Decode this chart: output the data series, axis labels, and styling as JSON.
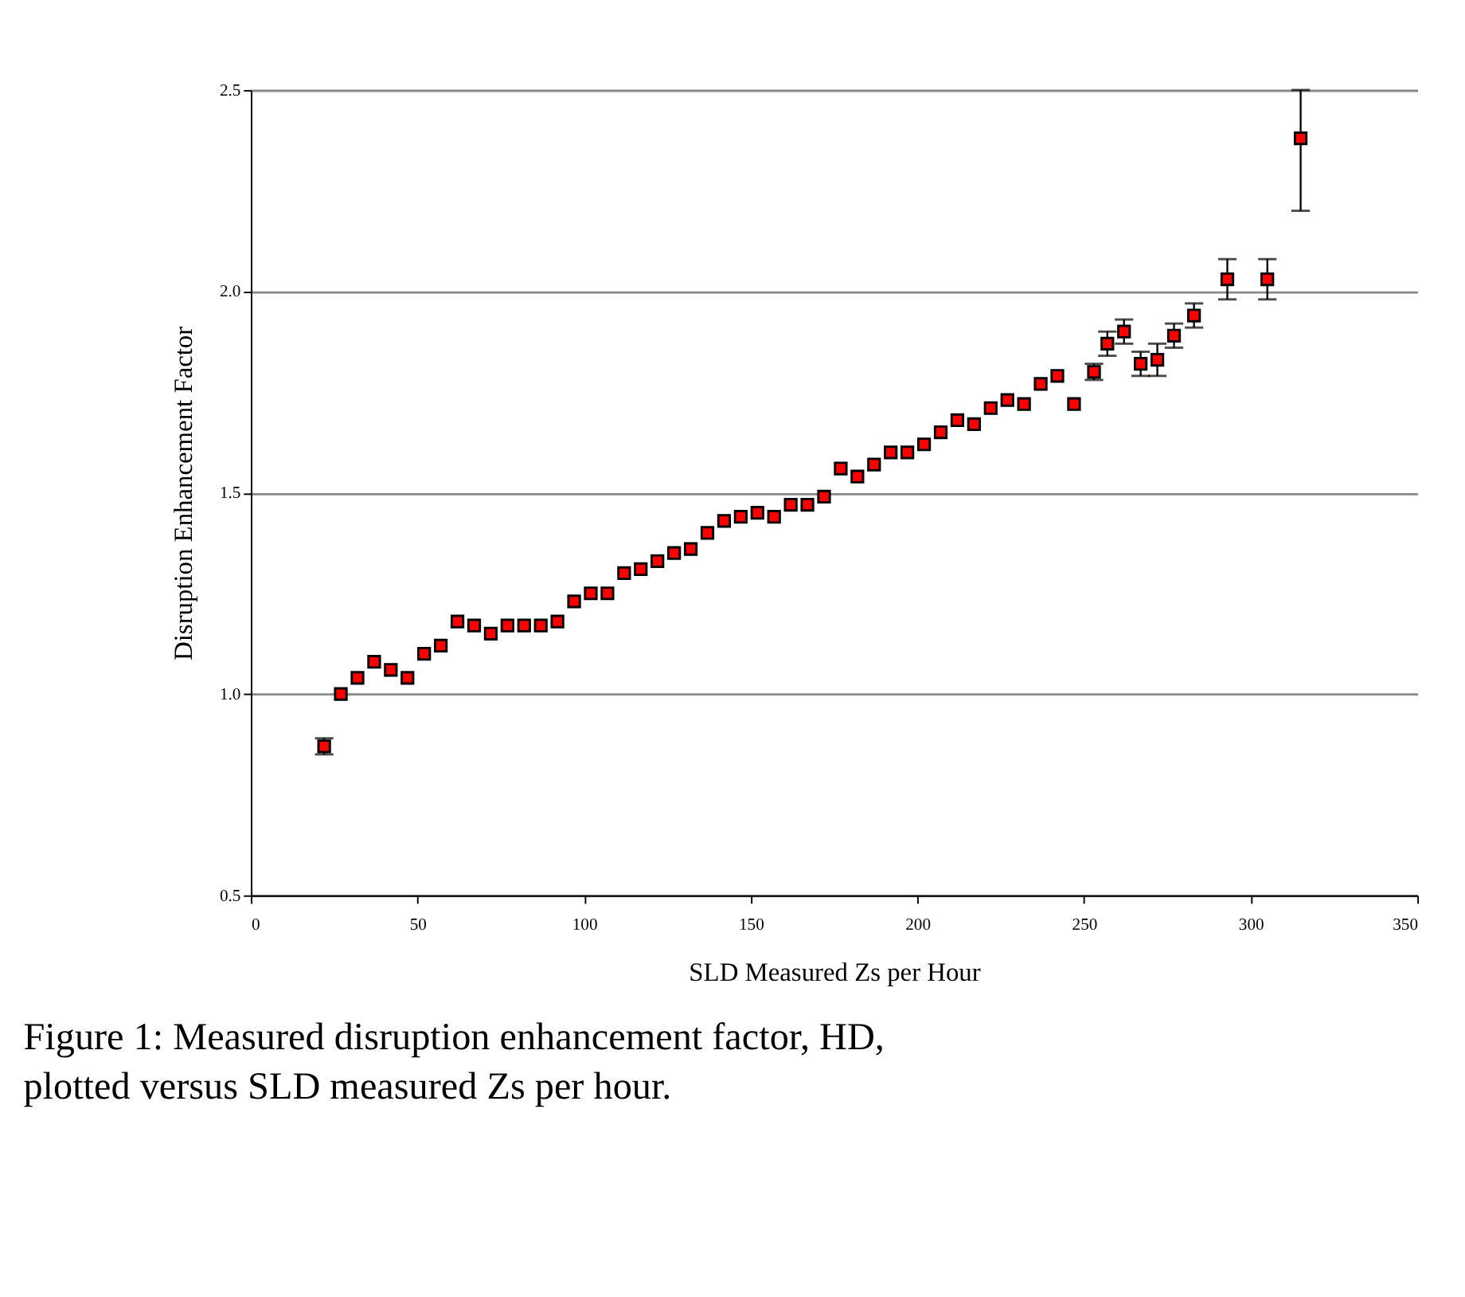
{
  "chart_data": {
    "type": "scatter",
    "xlabel": "SLD Measured Zs per Hour",
    "ylabel": "Disruption Enhancement Factor",
    "x": [
      22,
      27,
      32,
      37,
      42,
      47,
      52,
      57,
      62,
      67,
      72,
      77,
      82,
      87,
      92,
      97,
      102,
      107,
      112,
      117,
      122,
      127,
      132,
      137,
      142,
      147,
      152,
      157,
      162,
      167,
      172,
      177,
      182,
      187,
      192,
      197,
      202,
      207,
      212,
      217,
      222,
      227,
      232,
      237,
      242,
      247,
      253,
      257,
      262,
      267,
      272,
      277,
      283,
      293,
      305,
      315
    ],
    "series": [
      {
        "color": "#ff0000",
        "values": [
          0.87,
          1.0,
          1.04,
          1.08,
          1.06,
          1.04,
          1.1,
          1.12,
          1.18,
          1.17,
          1.15,
          1.17,
          1.17,
          1.17,
          1.18,
          1.23,
          1.25,
          1.25,
          1.3,
          1.31,
          1.33,
          1.35,
          1.36,
          1.4,
          1.43,
          1.44,
          1.45,
          1.44,
          1.47,
          1.47,
          1.49,
          1.56,
          1.54,
          1.57,
          1.6,
          1.6,
          1.62,
          1.65,
          1.68,
          1.67,
          1.71,
          1.73,
          1.72,
          1.77,
          1.79,
          1.72,
          1.8,
          1.87,
          1.9,
          1.82,
          1.83,
          1.89,
          1.94,
          2.03,
          2.03,
          2.38
        ],
        "errors": [
          0.02,
          null,
          null,
          null,
          null,
          null,
          null,
          null,
          null,
          null,
          null,
          null,
          null,
          null,
          null,
          null,
          null,
          null,
          null,
          null,
          null,
          null,
          null,
          null,
          null,
          null,
          null,
          null,
          null,
          null,
          null,
          null,
          null,
          null,
          null,
          null,
          null,
          null,
          null,
          null,
          null,
          null,
          null,
          null,
          null,
          null,
          0.02,
          0.03,
          0.03,
          0.03,
          0.04,
          0.03,
          0.03,
          0.05,
          0.05,
          [
            2.2,
            2.5
          ]
        ]
      }
    ],
    "xlim": [
      0,
      350
    ],
    "xticks": [
      0,
      50,
      100,
      150,
      200,
      250,
      300,
      350
    ],
    "ylim": [
      0.5,
      2.5
    ],
    "yticks": [
      {
        "value": 0.5,
        "label": "0.5"
      },
      {
        "value": 1,
        "label": "1.0"
      },
      {
        "value": 1.5,
        "label": "1.5"
      },
      {
        "value": 2,
        "label": "2.0"
      },
      {
        "value": 2.5,
        "label": "2.5"
      }
    ],
    "grid": "y",
    "marker": "square",
    "annotations": [
      "Figure 1: Measured disruption enhancement factor, HD,",
      "plotted versus SLD measured Zs per hour."
    ]
  }
}
